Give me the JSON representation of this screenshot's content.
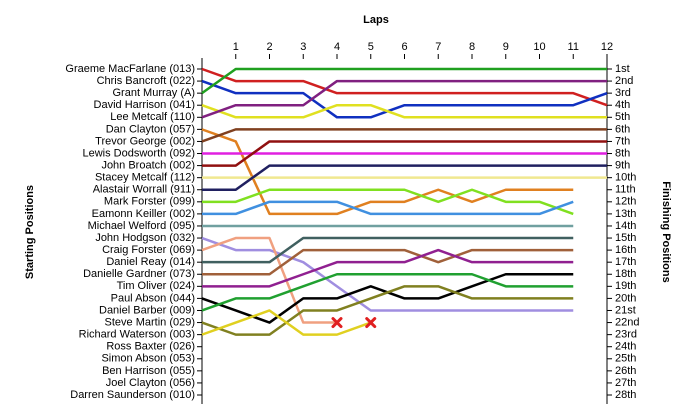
{
  "chart_data": {
    "type": "lapchart",
    "xlabel": "Laps",
    "ylabel": "Starting Positions",
    "y2label": "Finishing Positions",
    "x": [
      0,
      1,
      2,
      3,
      4,
      5,
      6,
      7,
      8,
      9,
      10,
      11,
      12
    ],
    "xlim": [
      0,
      12
    ],
    "xticks": [
      1,
      2,
      3,
      4,
      5,
      6,
      7,
      8,
      9,
      10,
      11,
      12
    ],
    "ylim": [
      1,
      28
    ],
    "y2ticks": [
      {
        "value": 1,
        "label": "1st"
      },
      {
        "value": 2,
        "label": "2nd"
      },
      {
        "value": 3,
        "label": "3rd"
      },
      {
        "value": 4,
        "label": "4th"
      },
      {
        "value": 5,
        "label": "5th"
      },
      {
        "value": 6,
        "label": "6th"
      },
      {
        "value": 7,
        "label": "7th"
      },
      {
        "value": 8,
        "label": "8th"
      },
      {
        "value": 9,
        "label": "9th"
      },
      {
        "value": 10,
        "label": "10th"
      },
      {
        "value": 11,
        "label": "11th"
      },
      {
        "value": 12,
        "label": "12th"
      },
      {
        "value": 13,
        "label": "13th"
      },
      {
        "value": 14,
        "label": "14th"
      },
      {
        "value": 15,
        "label": "15th"
      },
      {
        "value": 16,
        "label": "16th"
      },
      {
        "value": 17,
        "label": "17th"
      },
      {
        "value": 18,
        "label": "18th"
      },
      {
        "value": 19,
        "label": "19th"
      },
      {
        "value": 20,
        "label": "20th"
      },
      {
        "value": 21,
        "label": "21st"
      },
      {
        "value": 22,
        "label": "22nd"
      },
      {
        "value": 23,
        "label": "23rd"
      },
      {
        "value": 24,
        "label": "24th"
      },
      {
        "value": 25,
        "label": "25th"
      },
      {
        "value": 26,
        "label": "26th"
      },
      {
        "value": 27,
        "label": "27th"
      },
      {
        "value": 28,
        "label": "28th"
      }
    ],
    "series": [
      {
        "name": "Graeme MacFarlane (013)",
        "color": "#d02020",
        "values": [
          1,
          2,
          2,
          2,
          3,
          3,
          3,
          3,
          3,
          3,
          3,
          3,
          4
        ]
      },
      {
        "name": "Chris Bancroft (022)",
        "color": "#1030c0",
        "values": [
          2,
          3,
          3,
          3,
          5,
          5,
          4,
          4,
          4,
          4,
          4,
          4,
          3
        ]
      },
      {
        "name": "Grant Murray (A)",
        "color": "#20a020",
        "values": [
          3,
          1,
          1,
          1,
          1,
          1,
          1,
          1,
          1,
          1,
          1,
          1,
          1
        ]
      },
      {
        "name": "David Harrison (041)",
        "color": "#e0e020",
        "values": [
          4,
          5,
          5,
          5,
          4,
          4,
          5,
          5,
          5,
          5,
          5,
          5,
          5
        ]
      },
      {
        "name": "Lee Metcalf (110)",
        "color": "#802080",
        "values": [
          5,
          4,
          4,
          4,
          2,
          2,
          2,
          2,
          2,
          2,
          2,
          2,
          2
        ]
      },
      {
        "name": "Dan Clayton (057)",
        "color": "#e08020",
        "values": [
          6,
          7,
          13,
          13,
          13,
          12,
          12,
          11,
          12,
          11,
          11,
          11,
          null
        ]
      },
      {
        "name": "Trevor George (002)",
        "color": "#804020",
        "values": [
          7,
          6,
          6,
          6,
          6,
          6,
          6,
          6,
          6,
          6,
          6,
          6,
          6
        ]
      },
      {
        "name": "Lewis Dodsworth (092)",
        "color": "#e020e0",
        "values": [
          8,
          8,
          8,
          8,
          8,
          8,
          8,
          8,
          8,
          8,
          8,
          8,
          8
        ]
      },
      {
        "name": "John Broatch (002)",
        "color": "#901010",
        "values": [
          9,
          9,
          7,
          7,
          7,
          7,
          7,
          7,
          7,
          7,
          7,
          7,
          7
        ]
      },
      {
        "name": "Stacey Metcalf (112)",
        "color": "#f0e890",
        "values": [
          10,
          10,
          10,
          10,
          10,
          10,
          10,
          10,
          10,
          10,
          10,
          10,
          10
        ]
      },
      {
        "name": "Alastair Worrall (911)",
        "color": "#202060",
        "values": [
          11,
          11,
          9,
          9,
          9,
          9,
          9,
          9,
          9,
          9,
          9,
          9,
          9
        ]
      },
      {
        "name": "Mark Forster (099)",
        "color": "#80e020",
        "values": [
          12,
          12,
          11,
          11,
          11,
          11,
          11,
          12,
          11,
          12,
          12,
          13,
          null
        ]
      },
      {
        "name": "Eamonn Keiller (002)",
        "color": "#4090e0",
        "values": [
          13,
          13,
          12,
          12,
          12,
          13,
          13,
          13,
          13,
          13,
          13,
          12,
          null
        ]
      },
      {
        "name": "Michael Welford (095)",
        "color": "#70a0a0",
        "values": [
          14,
          14,
          14,
          14,
          14,
          14,
          14,
          14,
          14,
          14,
          14,
          14,
          null
        ]
      },
      {
        "name": "John Hodgson (032)",
        "color": "#a08ee0",
        "values": [
          15,
          16,
          16,
          17,
          19,
          21,
          21,
          21,
          21,
          21,
          21,
          21,
          null
        ]
      },
      {
        "name": "Craig Forster (069)",
        "color": "#f0a080",
        "values": [
          16,
          15,
          15,
          22,
          22,
          null,
          null,
          null,
          null,
          null,
          null,
          null,
          null
        ]
      },
      {
        "name": "Daniel Reay (014)",
        "color": "#406060",
        "values": [
          17,
          17,
          17,
          15,
          15,
          15,
          15,
          15,
          15,
          15,
          15,
          15,
          null
        ]
      },
      {
        "name": "Danielle Gardner (073)",
        "color": "#a0603a",
        "values": [
          18,
          18,
          18,
          16,
          16,
          16,
          16,
          17,
          16,
          16,
          16,
          16,
          null
        ]
      },
      {
        "name": "Tim Oliver (024)",
        "color": "#902090",
        "values": [
          19,
          19,
          19,
          18,
          17,
          17,
          17,
          16,
          17,
          17,
          17,
          17,
          null
        ]
      },
      {
        "name": "Paul Abson (044)",
        "color": "#000000",
        "values": [
          20,
          21,
          22,
          20,
          20,
          19,
          20,
          20,
          19,
          18,
          18,
          18,
          null
        ]
      },
      {
        "name": "Daniel Barber (009)",
        "color": "#20a030",
        "values": [
          21,
          20,
          20,
          19,
          18,
          18,
          18,
          18,
          18,
          19,
          19,
          19,
          null
        ]
      },
      {
        "name": "Steve Martin (029)",
        "color": "#808020",
        "values": [
          22,
          23,
          23,
          21,
          21,
          20,
          19,
          19,
          20,
          20,
          20,
          20,
          null
        ]
      },
      {
        "name": "Richard Waterson (003)",
        "color": "#e0d020",
        "values": [
          23,
          22,
          21,
          23,
          23,
          22,
          null,
          null,
          null,
          null,
          null,
          null,
          null
        ]
      },
      {
        "name": "Ross Baxter (026)",
        "values": [
          24,
          null,
          null,
          null,
          null,
          null,
          null,
          null,
          null,
          null,
          null,
          null,
          null
        ]
      },
      {
        "name": "Simon Abson (053)",
        "values": [
          25,
          null,
          null,
          null,
          null,
          null,
          null,
          null,
          null,
          null,
          null,
          null,
          null
        ]
      },
      {
        "name": "Ben Harrison (055)",
        "values": [
          26,
          null,
          null,
          null,
          null,
          null,
          null,
          null,
          null,
          null,
          null,
          null,
          null
        ]
      },
      {
        "name": "Joel Clayton (056)",
        "values": [
          27,
          null,
          null,
          null,
          null,
          null,
          null,
          null,
          null,
          null,
          null,
          null,
          null
        ]
      },
      {
        "name": "Darren Saunderson (010)",
        "values": [
          28,
          null,
          null,
          null,
          null,
          null,
          null,
          null,
          null,
          null,
          null,
          null,
          null
        ]
      }
    ],
    "retirements": [
      {
        "lap": 4,
        "position": 22
      },
      {
        "lap": 5,
        "position": 22
      }
    ],
    "marker_color": "#e02020"
  }
}
